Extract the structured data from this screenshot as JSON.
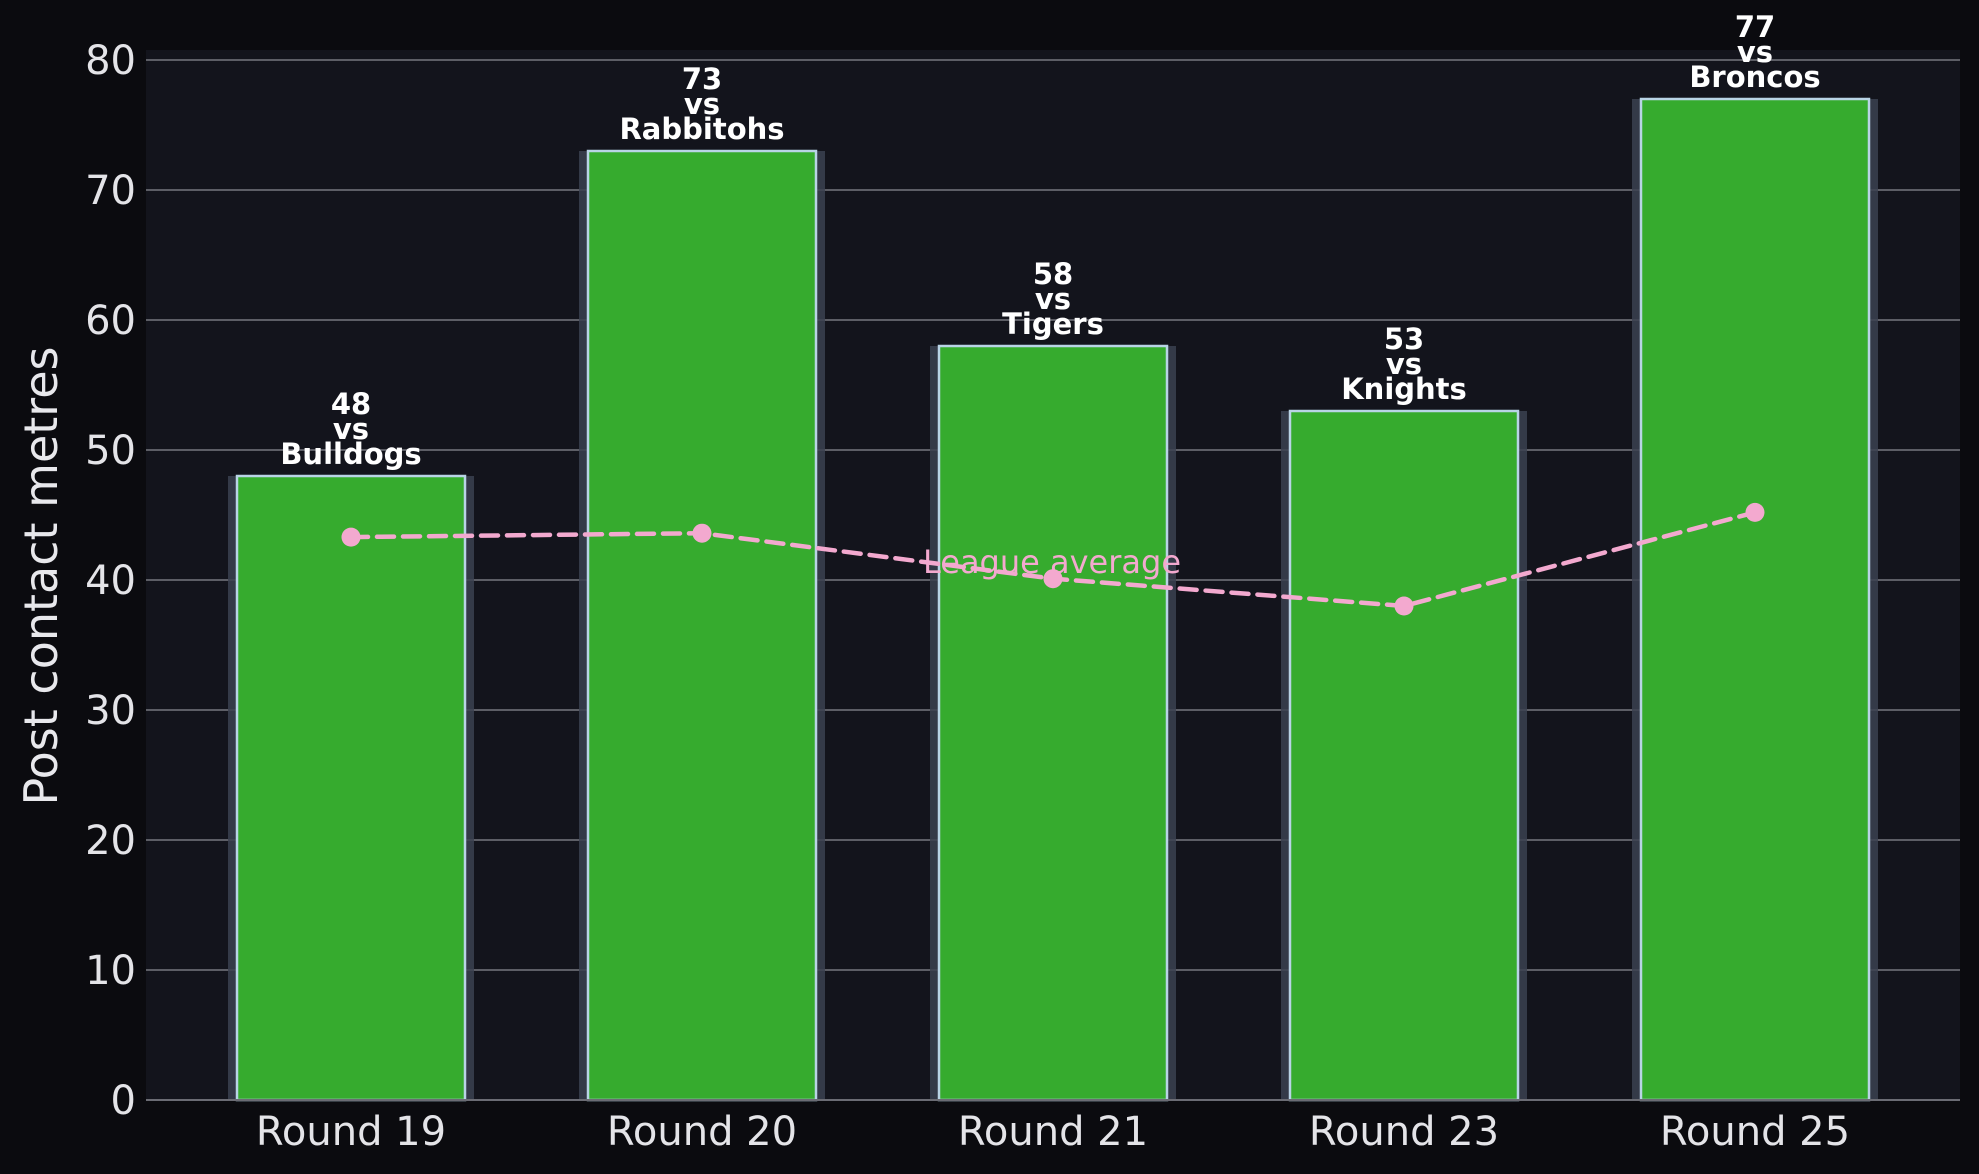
{
  "chart_data": {
    "type": "bar",
    "categories": [
      "Round 19",
      "Round 20",
      "Round 21",
      "Round 23",
      "Round 25"
    ],
    "series": [
      {
        "name": "",
        "values": [
          48,
          73,
          58,
          53,
          77
        ],
        "opponents": [
          "Bulldogs",
          "Rabbitohs",
          "Tigers",
          "Knights",
          "Broncos"
        ],
        "bar_labels": [
          [
            "48",
            "vs",
            "Bulldogs"
          ],
          [
            "73",
            "vs",
            "Rabbitohs"
          ],
          [
            "58",
            "vs",
            "Tigers"
          ],
          [
            "53",
            "vs",
            "Knights"
          ],
          [
            "77",
            "vs",
            "Broncos"
          ]
        ]
      },
      {
        "name": "League average",
        "type": "line",
        "style": "dashed",
        "values": [
          43.3,
          43.6,
          40.1,
          38.0,
          45.2
        ]
      }
    ],
    "annotations": [
      {
        "text": "League average"
      }
    ],
    "title": "",
    "xlabel": "",
    "ylabel": "Post contact metres",
    "ylim": [
      0,
      80
    ],
    "yticks": [
      "0",
      "10",
      "20",
      "30",
      "40",
      "50",
      "60",
      "70",
      "80"
    ],
    "grid": "horizontal",
    "legend": "none",
    "colors": {
      "page_background": "#0b0b0f",
      "plot_background": "#13141c",
      "bar_fill": "#36ab2e",
      "bar_edge": "#b9d4e6",
      "bar_shadow": "#3b4150",
      "average_line": "#f3a9cf",
      "grid": "#5d5e66",
      "text": "#e4e4e8"
    }
  }
}
